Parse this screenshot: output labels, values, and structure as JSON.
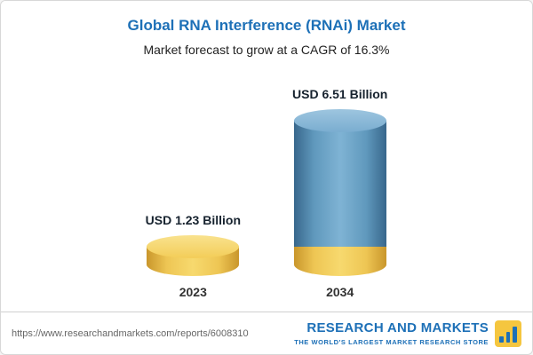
{
  "header": {
    "title": "Global RNA Interference (RNAi) Market",
    "subtitle": "Market forecast to grow at a CAGR of 16.3%"
  },
  "chart_data": {
    "type": "bar",
    "categories": [
      "2023",
      "2034"
    ],
    "values": [
      1.23,
      6.51
    ],
    "value_labels": [
      "USD 1.23 Billion",
      "USD 6.51 Billion"
    ],
    "title": "Global RNA Interference (RNAi) Market",
    "subtitle": "Market forecast to grow at a CAGR of 16.3%",
    "unit": "USD Billion",
    "cagr": "16.3%",
    "legend_position": "none",
    "grid": false,
    "colors": {
      "bar_2023": "#f0c64f",
      "bar_2034_body": "#5f94b8",
      "bar_2034_base": "#f0c64f",
      "title_blue": "#1d70b7"
    }
  },
  "footer": {
    "source_url": "https://www.researchandmarkets.com/reports/6008310",
    "brand": {
      "name": "RESEARCH AND MARKETS",
      "tagline": "THE WORLD'S LARGEST MARKET RESEARCH STORE"
    }
  }
}
